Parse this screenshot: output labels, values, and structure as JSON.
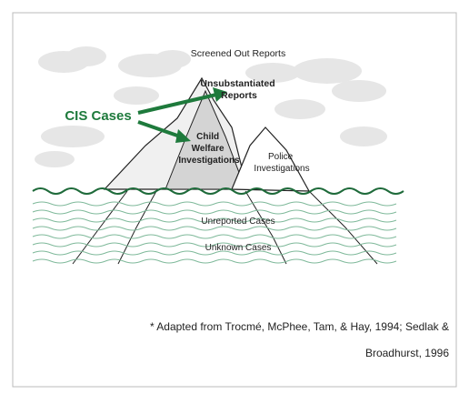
{
  "diagram": {
    "labels": {
      "screened_out": "Screened Out Reports",
      "unsubstantiated": [
        "Unsubstantiated",
        "Reports"
      ],
      "cis_cases": "CIS Cases",
      "child_welfare": [
        "Child",
        "Welfare",
        "Investigations"
      ],
      "police": [
        "Police",
        "Investigations"
      ],
      "unreported": "Unreported Cases",
      "unknown": "Unknown Cases"
    }
  },
  "caption": [
    "* Adapted from Trocmé, McPhee, Tam, & Hay, 1994; Sedlak &",
    "Broadhurst, 1996"
  ]
}
